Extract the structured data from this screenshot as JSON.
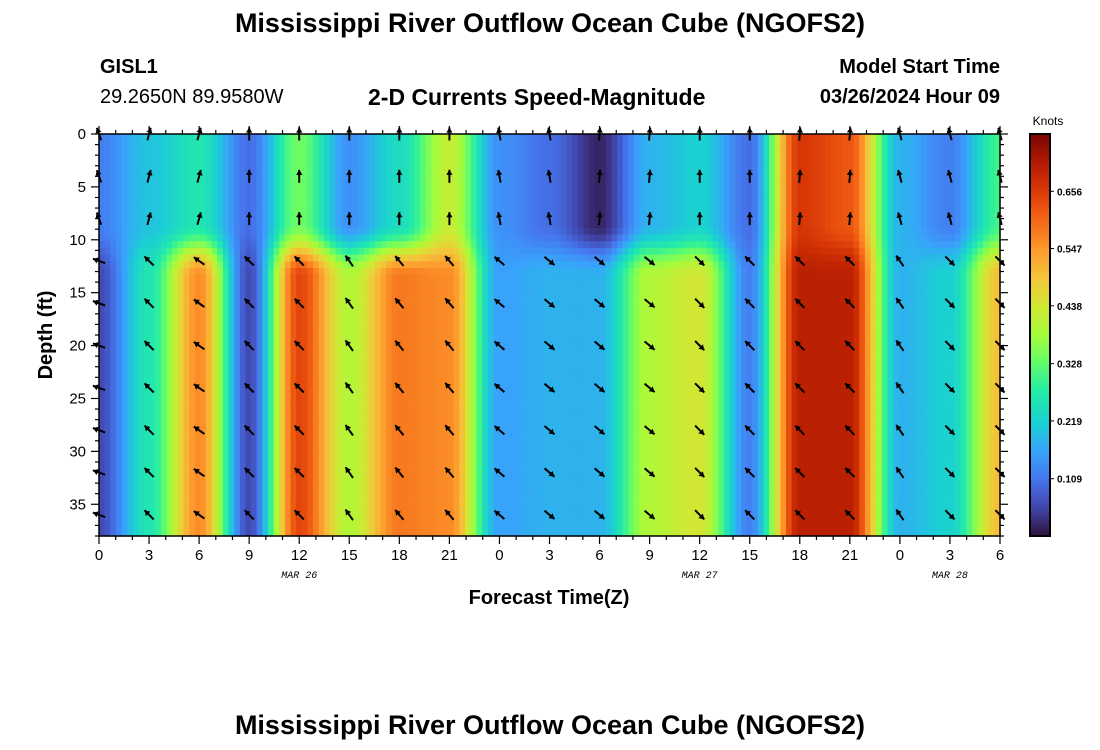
{
  "page": {
    "title_top": "Mississippi River Outflow Ocean Cube (NGOFS2)",
    "title_bottom": "Mississippi River Outflow Ocean Cube (NGOFS2)"
  },
  "station": {
    "id": "GISL1",
    "coords": "29.2650N  89.9580W"
  },
  "plot_title": "2-D Currents Speed-Magnitude",
  "model": {
    "label": "Model Start Time",
    "value": "03/26/2024 Hour 09"
  },
  "chart_data": {
    "type": "heatmap",
    "title": "2-D Currents Speed-Magnitude",
    "xlabel": "Forecast Time(Z)",
    "ylabel": "Depth (ft)",
    "x_tick_labels": [
      "0",
      "3",
      "6",
      "9",
      "12",
      "15",
      "18",
      "21",
      "0",
      "3",
      "6",
      "9",
      "12",
      "15",
      "18",
      "21",
      "0",
      "3",
      "6"
    ],
    "x_range_hours": [
      0,
      54
    ],
    "date_labels": [
      {
        "text": "MAR 26",
        "hour": 12
      },
      {
        "text": "MAR 27",
        "hour": 36
      },
      {
        "text": "MAR 28",
        "hour": 51
      }
    ],
    "y_ticks": [
      0,
      5,
      10,
      15,
      20,
      25,
      30,
      35
    ],
    "ylim": [
      0,
      38
    ],
    "colorbar": {
      "label": "Knots",
      "ticks": [
        0.109,
        0.219,
        0.328,
        0.438,
        0.547,
        0.656
      ],
      "range": [
        0.0,
        0.765
      ]
    },
    "upper_layer_speed_knots": [
      {
        "hour": 0,
        "speed": 0.12
      },
      {
        "hour": 3,
        "speed": 0.2
      },
      {
        "hour": 6,
        "speed": 0.26
      },
      {
        "hour": 9,
        "speed": 0.1
      },
      {
        "hour": 12,
        "speed": 0.34
      },
      {
        "hour": 15,
        "speed": 0.14
      },
      {
        "hour": 18,
        "speed": 0.24
      },
      {
        "hour": 21,
        "speed": 0.42
      },
      {
        "hour": 24,
        "speed": 0.14
      },
      {
        "hour": 27,
        "speed": 0.1
      },
      {
        "hour": 30,
        "speed": 0.02
      },
      {
        "hour": 33,
        "speed": 0.18
      },
      {
        "hour": 36,
        "speed": 0.22
      },
      {
        "hour": 39,
        "speed": 0.1
      },
      {
        "hour": 42,
        "speed": 0.66
      },
      {
        "hour": 45,
        "speed": 0.62
      },
      {
        "hour": 48,
        "speed": 0.18
      },
      {
        "hour": 51,
        "speed": 0.12
      },
      {
        "hour": 54,
        "speed": 0.3
      }
    ],
    "lower_layer_speed_knots": [
      {
        "hour": 0,
        "speed": 0.06
      },
      {
        "hour": 3,
        "speed": 0.26
      },
      {
        "hour": 6,
        "speed": 0.56
      },
      {
        "hour": 9,
        "speed": 0.06
      },
      {
        "hour": 12,
        "speed": 0.64
      },
      {
        "hour": 15,
        "speed": 0.4
      },
      {
        "hour": 18,
        "speed": 0.58
      },
      {
        "hour": 21,
        "speed": 0.56
      },
      {
        "hour": 24,
        "speed": 0.16
      },
      {
        "hour": 27,
        "speed": 0.18
      },
      {
        "hour": 30,
        "speed": 0.18
      },
      {
        "hour": 33,
        "speed": 0.4
      },
      {
        "hour": 36,
        "speed": 0.44
      },
      {
        "hour": 39,
        "speed": 0.12
      },
      {
        "hour": 42,
        "speed": 0.7
      },
      {
        "hour": 45,
        "speed": 0.7
      },
      {
        "hour": 48,
        "speed": 0.18
      },
      {
        "hour": 51,
        "speed": 0.22
      },
      {
        "hour": 54,
        "speed": 0.5
      }
    ],
    "layer_boundary_depth_ft": 11,
    "current_direction_deg": {
      "upper_bins": [
        {
          "hours": [
            0,
            3
          ],
          "deg": 340
        },
        {
          "hours": [
            3,
            9
          ],
          "deg": 15
        },
        {
          "hours": [
            9,
            24
          ],
          "deg": 0
        },
        {
          "hours": [
            24,
            30
          ],
          "deg": 350
        },
        {
          "hours": [
            30,
            36
          ],
          "deg": 5
        },
        {
          "hours": [
            36,
            42
          ],
          "deg": 0
        },
        {
          "hours": [
            42,
            48
          ],
          "deg": 5
        },
        {
          "hours": [
            48,
            54
          ],
          "deg": 345
        }
      ],
      "lower_bins": [
        {
          "hours": [
            0,
            3
          ],
          "deg": 290
        },
        {
          "hours": [
            3,
            6
          ],
          "deg": 315
        },
        {
          "hours": [
            6,
            9
          ],
          "deg": 305
        },
        {
          "hours": [
            9,
            15
          ],
          "deg": 315
        },
        {
          "hours": [
            15,
            18
          ],
          "deg": 325
        },
        {
          "hours": [
            18,
            24
          ],
          "deg": 320
        },
        {
          "hours": [
            24,
            27
          ],
          "deg": 310
        },
        {
          "hours": [
            27,
            36
          ],
          "deg": 130
        },
        {
          "hours": [
            36,
            39
          ],
          "deg": 135
        },
        {
          "hours": [
            39,
            48
          ],
          "deg": 315
        },
        {
          "hours": [
            48,
            51
          ],
          "deg": 325
        },
        {
          "hours": [
            51,
            54
          ],
          "deg": 135
        }
      ],
      "arrow_depths_ft": [
        0,
        4,
        8,
        12,
        16,
        20,
        24,
        28,
        32,
        36
      ]
    }
  }
}
